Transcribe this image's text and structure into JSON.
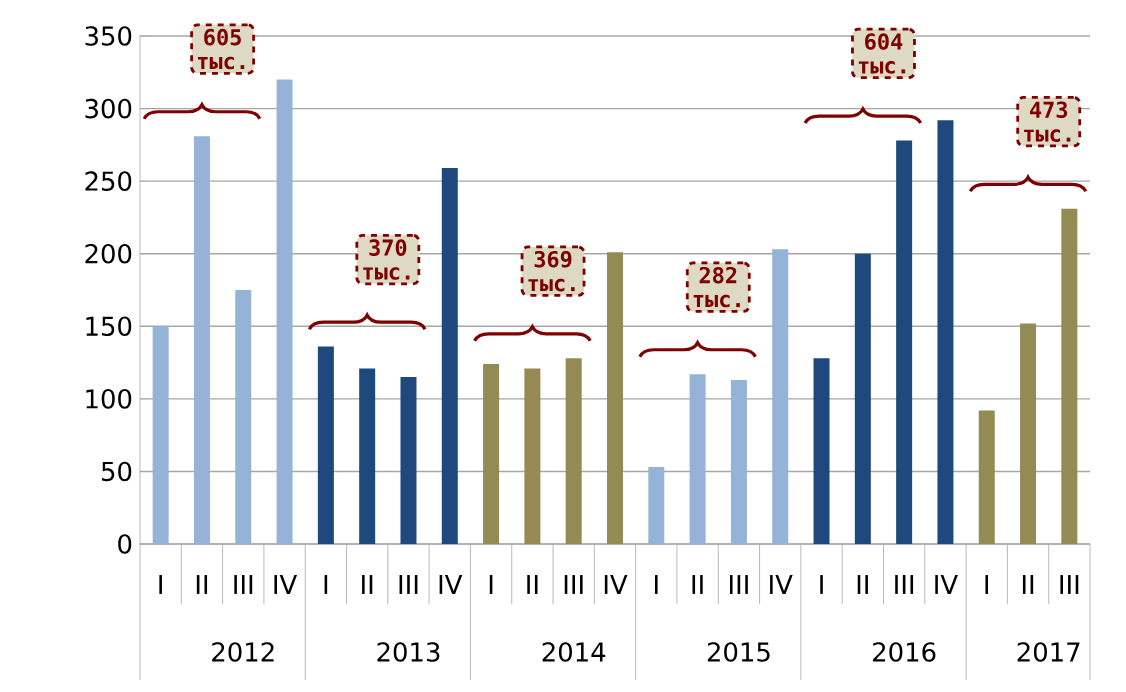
{
  "chart_data": {
    "type": "bar",
    "categories": [
      "I",
      "II",
      "III",
      "IV",
      "I",
      "II",
      "III",
      "IV",
      "I",
      "II",
      "III",
      "IV",
      "I",
      "II",
      "III",
      "IV",
      "I",
      "II",
      "III",
      "IV",
      "I",
      "II",
      "III"
    ],
    "values": [
      150,
      281,
      175,
      320,
      136,
      121,
      115,
      259,
      124,
      121,
      128,
      201,
      53,
      117,
      113,
      203,
      128,
      200,
      278,
      292,
      92,
      152,
      231
    ],
    "colors": [
      "#95b3d7",
      "#95b3d7",
      "#95b3d7",
      "#95b3d7",
      "#1f497d",
      "#1f497d",
      "#1f497d",
      "#1f497d",
      "#948a54",
      "#948a54",
      "#948a54",
      "#948a54",
      "#95b3d7",
      "#95b3d7",
      "#95b3d7",
      "#95b3d7",
      "#1f497d",
      "#1f497d",
      "#1f497d",
      "#1f497d",
      "#948a54",
      "#948a54",
      "#948a54"
    ],
    "ylim": [
      0,
      350
    ],
    "yticks": [
      0,
      50,
      100,
      150,
      200,
      250,
      300,
      350
    ],
    "grid": "y",
    "annotations": [
      "605 тыс.",
      "370 тыс.",
      "369 тыс.",
      "282 тыс.",
      "604 тыс.",
      "473 тыс.",
      "2012",
      "2013",
      "2014",
      "2015",
      "2016",
      "2017"
    ]
  }
}
